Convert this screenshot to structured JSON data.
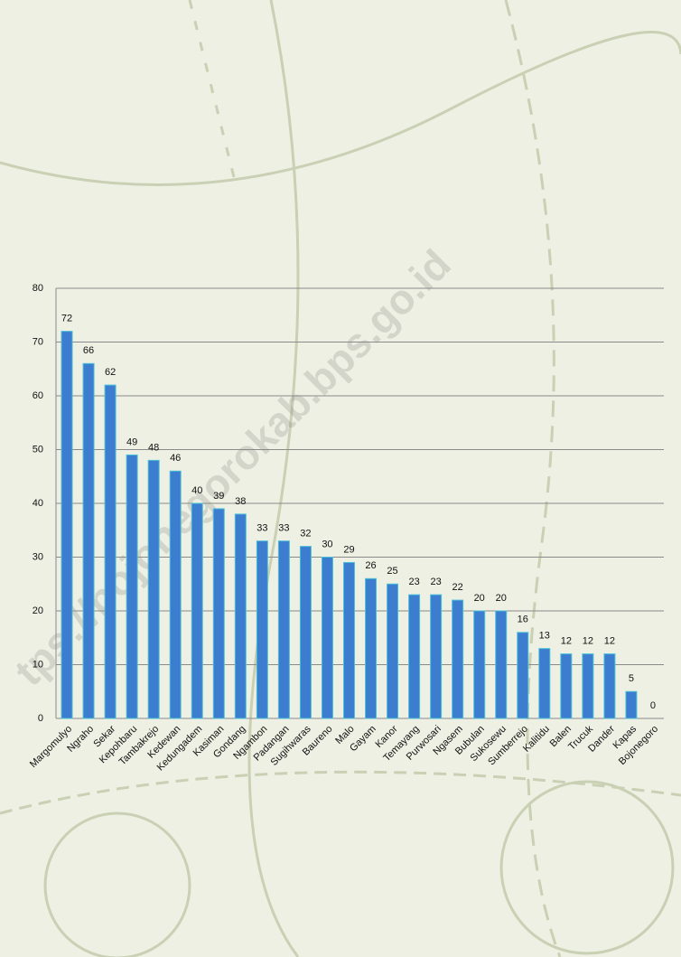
{
  "chart_data": {
    "type": "bar",
    "categories": [
      "Margomulyo",
      "Ngraho",
      "Sekar",
      "Kepohbaru",
      "Tambakrejo",
      "Kedewan",
      "Kedungadem",
      "Kasiman",
      "Gondang",
      "Ngambon",
      "Padangan",
      "Sugihwaras",
      "Baureno",
      "Malo",
      "Gayam",
      "Kanor",
      "Temayang",
      "Purwosari",
      "Ngasem",
      "Bubulan",
      "Sukosewu",
      "Sumberrejo",
      "Kalitidu",
      "Balen",
      "Trucuk",
      "Dander",
      "Kapas",
      "Bojonegoro"
    ],
    "values": [
      72,
      66,
      62,
      49,
      48,
      46,
      40,
      39,
      38,
      33,
      33,
      32,
      30,
      29,
      26,
      25,
      23,
      23,
      22,
      20,
      20,
      16,
      13,
      12,
      12,
      12,
      5,
      0
    ],
    "color": "#3c7dd0",
    "ylim": [
      0,
      80
    ],
    "yticks": [
      0,
      10,
      20,
      30,
      40,
      50,
      60,
      70,
      80
    ],
    "grid": true,
    "watermark": "tps://bojonegorokab.bps.go.id"
  }
}
